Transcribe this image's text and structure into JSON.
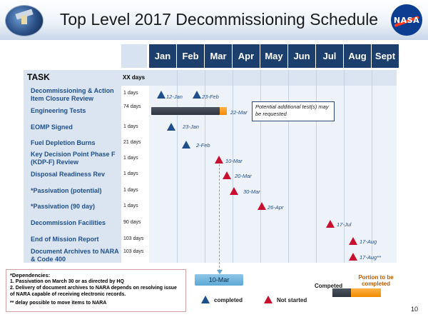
{
  "title": "Top Level 2017 Decommissioning Schedule",
  "logos": {
    "right": "NASA",
    "left_label": "mission-emblem"
  },
  "months": [
    "Jan",
    "Feb",
    "Mar",
    "Apr",
    "May",
    "Jun",
    "Jul",
    "Aug",
    "Sept"
  ],
  "table_header": {
    "task": "TASK",
    "days": "XX days"
  },
  "tasks": [
    {
      "name": "Decommissioning & Action Item Closure Review",
      "days": "1 days"
    },
    {
      "name": "Engineering Tests",
      "days": "74 days"
    },
    {
      "name": "EOMP Signed",
      "days": "1 days"
    },
    {
      "name": "Fuel Depletion Burns",
      "days": "21 days"
    },
    {
      "name": "Key Decision Point Phase F (KDP-F) Review",
      "days": "1 days"
    },
    {
      "name": "Disposal Readiness Rev",
      "days": "1 days"
    },
    {
      "name": "*Passivation (potential)",
      "days": "1 days"
    },
    {
      "name": "*Passivation (90 day)",
      "days": "1 days"
    },
    {
      "name": "Decommission Facilities",
      "days": "90 days"
    },
    {
      "name": "End of Mission Report",
      "days": "103 days"
    },
    {
      "name": "Document Archives to NARA & Code 400",
      "days": "103 days"
    }
  ],
  "milestones": {
    "m1": "12-Jan",
    "m2": "23-Feb",
    "m3": "22-Mar",
    "m4": "23-Jan",
    "m5": "2-Feb",
    "m6": "10-Mar",
    "m7": "20-Mar",
    "m8": "30-Mar",
    "m9": "26-Apr",
    "m10": "17-Jul",
    "m11": "17-Aug",
    "m12": "17-Aug**"
  },
  "note_box": "Potential additional test(s) may be requested",
  "marker_box": "10-Mar",
  "dependencies": {
    "title": "*Dependencies:",
    "items": [
      "1.   Passivation on March 30 or as directed by HQ",
      "2.   Delivery of document archives to NARA depends on resolving issue of NARA capable of receiving electronic records."
    ],
    "note": "**  delay possible to move items to NARA"
  },
  "legend": {
    "completed": "completed",
    "not_started": "Not started",
    "bar_completed": "Competed",
    "bar_portion": "Portion to be completed"
  },
  "colors": {
    "completed": "#1f4e8c",
    "not_started": "#c8102e",
    "month_header": "#1c3f6d",
    "extension": "#f08a00"
  },
  "page_number": "10"
}
